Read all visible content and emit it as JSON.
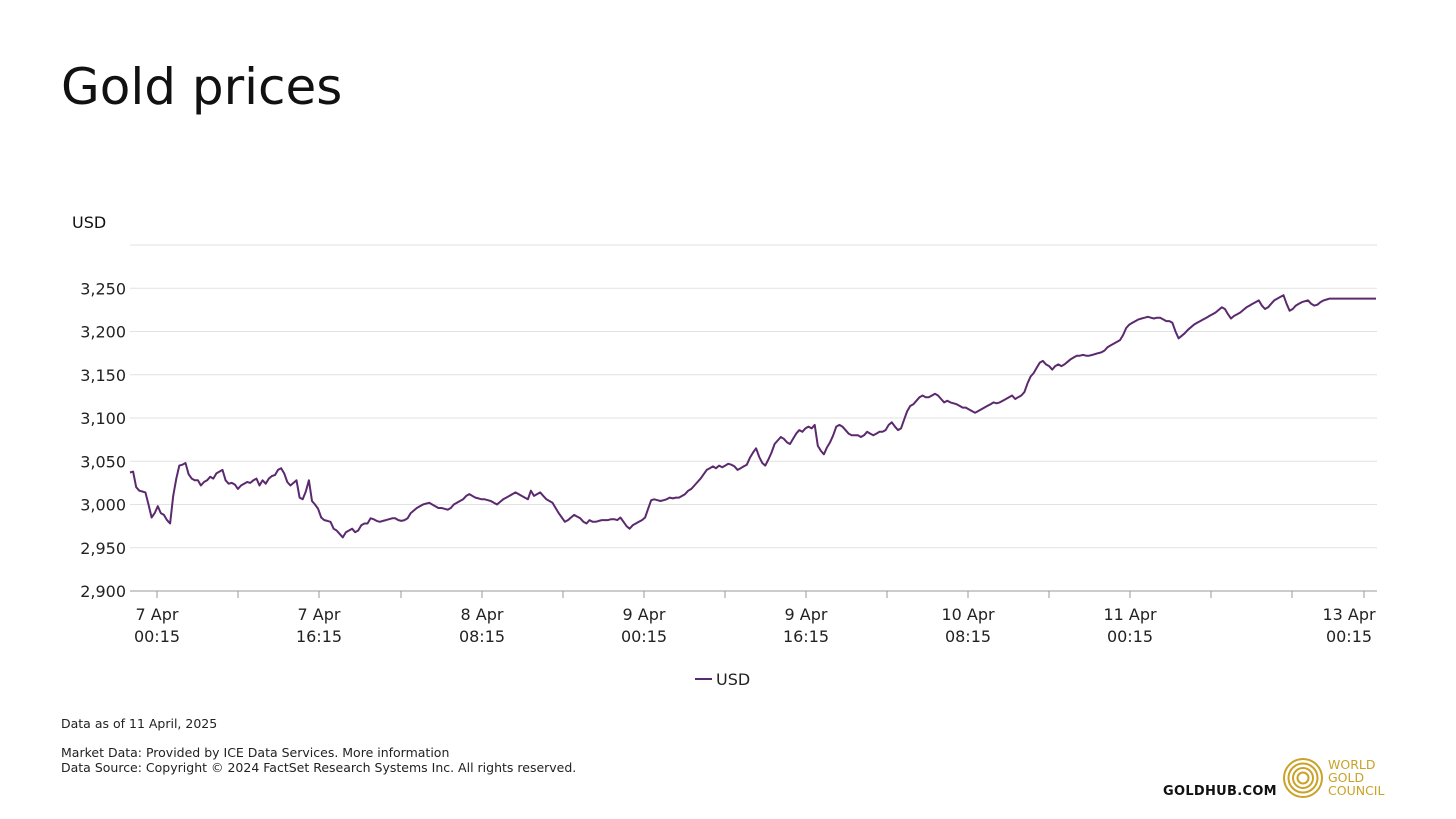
{
  "title": "Gold prices",
  "chart_data": {
    "type": "line",
    "title": "Gold prices",
    "ylabel": "USD",
    "xlabel": "",
    "ylim": [
      2900,
      3300
    ],
    "yticks": [
      2900,
      2950,
      3000,
      3050,
      3100,
      3150,
      3200,
      3250
    ],
    "ytick_labels": [
      "2,900",
      "2,950",
      "3,000",
      "3,050",
      "3,100",
      "3,150",
      "3,200",
      "3,250"
    ],
    "xtick_labels": [
      {
        "line1": "7 Apr",
        "line2": "00:15"
      },
      {
        "line1": "7 Apr",
        "line2": "16:15"
      },
      {
        "line1": "8 Apr",
        "line2": "08:15"
      },
      {
        "line1": "9 Apr",
        "line2": "00:15"
      },
      {
        "line1": "9 Apr",
        "line2": "16:15"
      },
      {
        "line1": "10 Apr",
        "line2": "08:15"
      },
      {
        "line1": "11 Apr",
        "line2": "00:15"
      },
      {
        "line1": "13 Apr",
        "line2": "00:15"
      }
    ],
    "legend": [
      "USD"
    ],
    "legend_position": "bottom",
    "series": [
      {
        "name": "USD",
        "color": "#5b2a6e",
        "values": [
          3037,
          3038,
          3020,
          3016,
          3015,
          3014,
          3000,
          2985,
          2990,
          2998,
          2990,
          2988,
          2982,
          2978,
          3010,
          3030,
          3045,
          3046,
          3048,
          3035,
          3030,
          3028,
          3028,
          3022,
          3026,
          3028,
          3032,
          3030,
          3036,
          3038,
          3040,
          3028,
          3024,
          3025,
          3023,
          3018,
          3022,
          3024,
          3026,
          3025,
          3028,
          3030,
          3022,
          3028,
          3024,
          3030,
          3033,
          3034,
          3040,
          3042,
          3036,
          3026,
          3022,
          3025,
          3028,
          3008,
          3006,
          3015,
          3028,
          3004,
          3000,
          2995,
          2985,
          2982,
          2981,
          2980,
          2972,
          2970,
          2966,
          2962,
          2968,
          2970,
          2972,
          2968,
          2970,
          2976,
          2978,
          2978,
          2984,
          2983,
          2981,
          2980,
          2981,
          2982,
          2983,
          2984,
          2984,
          2982,
          2981,
          2982,
          2984,
          2990,
          2993,
          2996,
          2998,
          3000,
          3001,
          3002,
          3000,
          2998,
          2996,
          2996,
          2995,
          2994,
          2996,
          3000,
          3002,
          3004,
          3006,
          3010,
          3012,
          3010,
          3008,
          3007,
          3006,
          3006,
          3005,
          3004,
          3002,
          3000,
          3003,
          3006,
          3008,
          3010,
          3012,
          3014,
          3012,
          3010,
          3008,
          3006,
          3016,
          3010,
          3012,
          3014,
          3010,
          3006,
          3004,
          3002,
          2996,
          2990,
          2985,
          2980,
          2982,
          2985,
          2988,
          2986,
          2984,
          2980,
          2978,
          2982,
          2980,
          2980,
          2981,
          2982,
          2982,
          2982,
          2983,
          2983,
          2982,
          2985,
          2980,
          2975,
          2972,
          2976,
          2978,
          2980,
          2982,
          2985,
          2995,
          3005,
          3006,
          3005,
          3004,
          3005,
          3006,
          3008,
          3007,
          3008,
          3008,
          3010,
          3012,
          3016,
          3018,
          3022,
          3026,
          3030,
          3035,
          3040,
          3042,
          3044,
          3042,
          3045,
          3043,
          3045,
          3047,
          3046,
          3044,
          3040,
          3042,
          3044,
          3046,
          3054,
          3060,
          3065,
          3055,
          3048,
          3045,
          3052,
          3060,
          3070,
          3074,
          3078,
          3076,
          3072,
          3070,
          3076,
          3082,
          3086,
          3084,
          3088,
          3090,
          3088,
          3092,
          3068,
          3062,
          3058,
          3066,
          3072,
          3080,
          3090,
          3092,
          3090,
          3086,
          3082,
          3080,
          3080,
          3080,
          3078,
          3080,
          3084,
          3082,
          3080,
          3082,
          3084,
          3084,
          3086,
          3092,
          3095,
          3090,
          3086,
          3088,
          3098,
          3108,
          3114,
          3116,
          3120,
          3124,
          3126,
          3124,
          3124,
          3126,
          3128,
          3126,
          3122,
          3118,
          3120,
          3118,
          3117,
          3116,
          3114,
          3112,
          3112,
          3110,
          3108,
          3106,
          3108,
          3110,
          3112,
          3114,
          3116,
          3118,
          3117,
          3118,
          3120,
          3122,
          3124,
          3126,
          3122,
          3124,
          3126,
          3130,
          3140,
          3148,
          3152,
          3158,
          3164,
          3166,
          3162,
          3160,
          3156,
          3160,
          3162,
          3160,
          3162,
          3165,
          3168,
          3170,
          3172,
          3172,
          3173,
          3172,
          3172,
          3173,
          3174,
          3175,
          3176,
          3178,
          3182,
          3184,
          3186,
          3188,
          3190,
          3196,
          3204,
          3208,
          3210,
          3212,
          3214,
          3215,
          3216,
          3217,
          3216,
          3215,
          3216,
          3216,
          3214,
          3212,
          3212,
          3210,
          3200,
          3192,
          3195,
          3198,
          3202,
          3205,
          3208,
          3210,
          3212,
          3214,
          3216,
          3218,
          3220,
          3222,
          3225,
          3228,
          3226,
          3220,
          3215,
          3218,
          3220,
          3222,
          3225,
          3228,
          3230,
          3232,
          3234,
          3236,
          3230,
          3226,
          3228,
          3232,
          3236,
          3238,
          3240,
          3242,
          3232,
          3224,
          3226,
          3230,
          3232,
          3234,
          3235,
          3236,
          3232,
          3230,
          3231,
          3234,
          3236,
          3237,
          3238,
          3238,
          3238,
          3238,
          3238,
          3238,
          3238,
          3238,
          3238,
          3238,
          3238,
          3238,
          3238,
          3238,
          3238,
          3238
        ]
      }
    ]
  },
  "footer": {
    "as_of": "Data as of 11 April, 2025",
    "market_data": "Market Data: Provided by ICE Data Services. More information",
    "data_source": "Data Source: Copyright © 2024 FactSet Research Systems Inc. All rights reserved."
  },
  "branding": {
    "site": "GOLDHUB.COM",
    "logo_line1": "WORLD",
    "logo_line2": "GOLD",
    "logo_line3": "COUNCIL",
    "logo_color": "#c9a227"
  }
}
